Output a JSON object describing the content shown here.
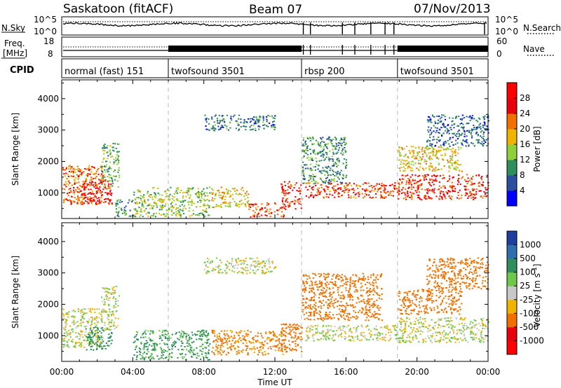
{
  "header": {
    "station": "Saskatoon (fitACF)",
    "beam": "Beam 07",
    "date": "07/Nov/2013"
  },
  "noise_panel": {
    "left_label": "N.Sky",
    "left_ticks": [
      "10^5",
      "10^0"
    ],
    "right_ticks": [
      "10^5",
      "10^0"
    ],
    "right_label": "N.Search",
    "right_legend_line": "dotted"
  },
  "freq_panel": {
    "left_label_line1": "Freq.",
    "left_label_line2": "[MHz]",
    "left_ticks": [
      "18",
      "8"
    ],
    "right_ticks": [
      "60",
      "0"
    ],
    "right_label": "Nave",
    "right_legend_line": "dotted"
  },
  "cpid_panel": {
    "label": "CPID",
    "modes": [
      {
        "name": "normal (fast) 151",
        "start_hour": 0,
        "end_hour": 6
      },
      {
        "name": "twofsound 3501",
        "start_hour": 6,
        "end_hour": 13.5
      },
      {
        "name": "rbsp 200",
        "start_hour": 13.5,
        "end_hour": 18.9
      },
      {
        "name": "twofsound 3501",
        "start_hour": 18.9,
        "end_hour": 24
      }
    ]
  },
  "axes": {
    "x_label": "Time UT",
    "x_ticks": [
      "00:00",
      "04:00",
      "08:00",
      "12:00",
      "16:00",
      "20:00",
      "00:00"
    ],
    "x_tick_hours": [
      0,
      4,
      8,
      12,
      16,
      20,
      24
    ],
    "y_label": "Slant Range [km]",
    "y_ticks": [
      1000,
      2000,
      3000,
      4000
    ],
    "y_range_km": [
      180,
      4600
    ]
  },
  "power_colorbar": {
    "label": "Power [dB]",
    "ticks": [
      "4",
      "8",
      "12",
      "16",
      "20",
      "24",
      "28"
    ],
    "colors": [
      "#0000ff",
      "#2a4fa0",
      "#2e8f5c",
      "#8fcf3a",
      "#f0b400",
      "#f07000",
      "#e8000a",
      "#ff0000"
    ]
  },
  "velocity_colorbar": {
    "label": "Velocity [m s^-1]",
    "ticks": [
      "1000",
      "500",
      "100",
      "25",
      "-25",
      "-100",
      "-500",
      "-1000"
    ],
    "colors": [
      "#1f3fa0",
      "#2f6fb0",
      "#2e8f5c",
      "#6ec84a",
      "#c8c8c8",
      "#f0b400",
      "#f07000",
      "#e8000a",
      "#ff0000"
    ]
  },
  "chart_data": {
    "type": "heatmap",
    "panels": [
      {
        "quantity": "Power",
        "units": "dB",
        "color_range": [
          0,
          32
        ],
        "regions": [
          {
            "t0": 0.0,
            "t1": 2.3,
            "r0": 650,
            "r1": 1900,
            "value": 22
          },
          {
            "t0": 1.0,
            "t1": 2.8,
            "r0": 650,
            "r1": 1400,
            "value": 27
          },
          {
            "t0": 2.2,
            "t1": 3.2,
            "r0": 1200,
            "r1": 2600,
            "value": 12
          },
          {
            "t0": 3.0,
            "t1": 4.0,
            "r0": 250,
            "r1": 800,
            "value": 9
          },
          {
            "t0": 4.0,
            "t1": 8.3,
            "r0": 250,
            "r1": 1200,
            "value": 14
          },
          {
            "t0": 8.4,
            "t1": 10.5,
            "r0": 550,
            "r1": 1200,
            "value": 18
          },
          {
            "t0": 10.5,
            "t1": 12.6,
            "r0": 250,
            "r1": 700,
            "value": 24
          },
          {
            "t0": 8.0,
            "t1": 12.0,
            "r0": 3000,
            "r1": 3500,
            "value": 8
          },
          {
            "t0": 12.3,
            "t1": 13.5,
            "r0": 500,
            "r1": 1400,
            "value": 26
          },
          {
            "t0": 13.7,
            "t1": 18.9,
            "r0": 850,
            "r1": 1350,
            "value": 24
          },
          {
            "t0": 13.5,
            "t1": 16.0,
            "r0": 1300,
            "r1": 2800,
            "value": 10
          },
          {
            "t0": 18.9,
            "t1": 24.0,
            "r0": 800,
            "r1": 1600,
            "value": 25
          },
          {
            "t0": 18.9,
            "t1": 22.5,
            "r0": 1700,
            "r1": 2500,
            "value": 17
          },
          {
            "t0": 20.5,
            "t1": 24.0,
            "r0": 2500,
            "r1": 3500,
            "value": 7
          }
        ]
      },
      {
        "quantity": "Velocity",
        "units": "m s^-1",
        "color_levels": [
          1000,
          500,
          100,
          25,
          -25,
          -100,
          -500,
          -1000
        ],
        "regions": [
          {
            "t0": 0.0,
            "t1": 2.3,
            "r0": 650,
            "r1": 1900,
            "value": 0
          },
          {
            "t0": 1.3,
            "t1": 2.8,
            "r0": 550,
            "r1": 1300,
            "value": 200
          },
          {
            "t0": 2.2,
            "t1": 3.2,
            "r0": 1200,
            "r1": 2600,
            "value": 0
          },
          {
            "t0": 4.0,
            "t1": 8.3,
            "r0": 250,
            "r1": 1200,
            "value": 150
          },
          {
            "t0": 8.4,
            "t1": 12.6,
            "r0": 400,
            "r1": 1200,
            "value": -150
          },
          {
            "t0": 8.0,
            "t1": 12.0,
            "r0": 3000,
            "r1": 3500,
            "value": 0
          },
          {
            "t0": 12.3,
            "t1": 13.5,
            "r0": 500,
            "r1": 1400,
            "value": -300
          },
          {
            "t0": 13.7,
            "t1": 18.9,
            "r0": 850,
            "r1": 1350,
            "value": 0
          },
          {
            "t0": 13.5,
            "t1": 18.0,
            "r0": 1500,
            "r1": 3000,
            "value": -400
          },
          {
            "t0": 18.9,
            "t1": 24.0,
            "r0": 800,
            "r1": 1600,
            "value": 0
          },
          {
            "t0": 18.9,
            "t1": 22.5,
            "r0": 1700,
            "r1": 2500,
            "value": -400
          },
          {
            "t0": 20.5,
            "t1": 24.0,
            "r0": 2500,
            "r1": 3500,
            "value": -250
          }
        ]
      }
    ],
    "x_range_hours": [
      0,
      24
    ],
    "y_range_km": [
      180,
      4600
    ],
    "xlabel": "Time UT",
    "ylabel": "Slant Range [km]",
    "grid": false,
    "mode_boundaries_hours": [
      6.0,
      13.5,
      18.9
    ]
  }
}
